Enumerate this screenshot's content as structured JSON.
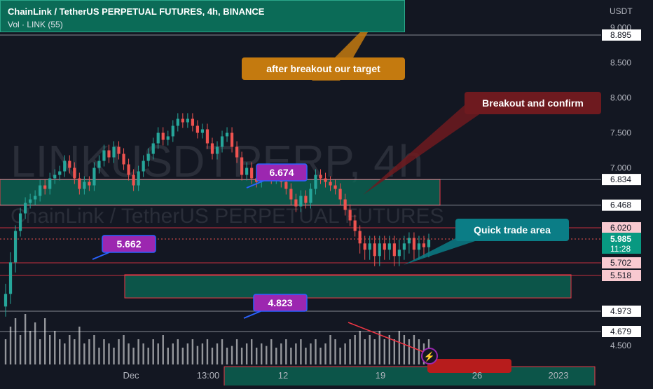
{
  "header": {
    "title": "ChainLink / TetherUS PERPETUAL FUTURES, 4h, BINANCE",
    "volume": "Vol · LINK (55)"
  },
  "watermark": {
    "main": "LINKUSDTPERP, 4h",
    "sub": "ChainLink / TetherUS PERPETUAL FUTURES"
  },
  "colors": {
    "background": "#131722",
    "up": "#26a69a",
    "down": "#ef5350",
    "zone_fill": "#0b6b57",
    "zone_border": "#f23645",
    "label_purple": "#9c27b0",
    "callout_orange": "#c47a0f",
    "callout_red": "#6e1a1f",
    "callout_teal": "#0b7d86"
  },
  "chart_data": {
    "type": "candlestick",
    "currency": "USDT",
    "y_ticks": [
      "9.000",
      "8.500",
      "8.000",
      "7.500",
      "7.000",
      "4.500"
    ],
    "x_ticks": [
      "Dec",
      "13:00",
      "12",
      "19",
      "26",
      "2023"
    ],
    "ylim": [
      4.5,
      9.0
    ],
    "price_levels": [
      {
        "value": "8.895",
        "style": "white"
      },
      {
        "value": "6.834",
        "style": "white"
      },
      {
        "value": "6.468",
        "style": "white"
      },
      {
        "value": "6.020",
        "style": "pink"
      },
      {
        "value": "5.702",
        "style": "pink"
      },
      {
        "value": "5.518",
        "style": "pink"
      },
      {
        "value": "4.973",
        "style": "white"
      },
      {
        "value": "4.679",
        "style": "white"
      }
    ],
    "current_price": {
      "value": "5.985",
      "countdown": "11:28"
    },
    "zones": [
      {
        "low": 6.468,
        "high": 6.834
      },
      {
        "low": 5.518,
        "high": 5.702
      },
      {
        "low": 4.679,
        "high": 4.973
      }
    ],
    "price_labels": [
      "6.674",
      "5.662",
      "4.823"
    ],
    "annotations": [
      "after breakout our target",
      "Breakout and confirm",
      "Quick trade area"
    ],
    "closes": [
      5.55,
      5.8,
      6.1,
      6.35,
      6.5,
      6.55,
      6.6,
      6.75,
      6.7,
      6.85,
      6.9,
      6.95,
      7.1,
      7.0,
      6.85,
      6.7,
      6.8,
      6.75,
      7.0,
      7.1,
      7.25,
      7.15,
      7.3,
      7.2,
      7.05,
      6.9,
      6.75,
      6.95,
      7.1,
      7.2,
      7.35,
      7.5,
      7.4,
      7.45,
      7.6,
      7.7,
      7.65,
      7.7,
      7.6,
      7.5,
      7.55,
      7.35,
      7.2,
      7.3,
      7.45,
      7.5,
      7.3,
      7.15,
      6.9,
      7.0,
      6.85,
      6.8,
      6.9,
      6.95,
      6.85,
      6.9,
      6.8,
      6.7,
      6.55,
      6.45,
      6.6,
      6.5,
      6.7,
      6.9,
      6.85,
      6.8,
      6.75,
      6.7,
      6.55,
      6.4,
      6.25,
      6.1,
      5.95,
      5.9,
      5.95,
      5.85,
      5.95,
      5.9,
      5.95,
      5.85,
      5.9,
      5.95,
      6.0,
      5.9,
      5.95,
      5.92,
      5.98
    ],
    "volume": [
      0.3,
      0.45,
      0.55,
      0.35,
      0.6,
      0.4,
      0.5,
      0.3,
      0.55,
      0.35,
      0.4,
      0.3,
      0.25,
      0.35,
      0.3,
      0.45,
      0.25,
      0.3,
      0.35,
      0.2,
      0.3,
      0.25,
      0.2,
      0.3,
      0.35,
      0.25,
      0.2,
      0.3,
      0.25,
      0.2,
      0.3,
      0.25,
      0.35,
      0.2,
      0.25,
      0.3,
      0.2,
      0.25,
      0.3,
      0.22,
      0.25,
      0.3,
      0.2,
      0.25,
      0.3,
      0.2,
      0.22,
      0.3,
      0.2,
      0.25,
      0.3,
      0.2,
      0.25,
      0.22,
      0.3,
      0.2,
      0.25,
      0.3,
      0.2,
      0.25,
      0.3,
      0.2,
      0.25,
      0.3,
      0.2,
      0.25,
      0.35,
      0.3,
      0.2,
      0.25,
      0.3,
      0.35,
      0.4,
      0.3,
      0.35,
      0.3,
      0.4,
      0.3,
      0.35,
      0.3,
      0.4,
      0.35,
      0.3,
      0.35,
      0.3,
      0.25,
      0.3
    ]
  }
}
